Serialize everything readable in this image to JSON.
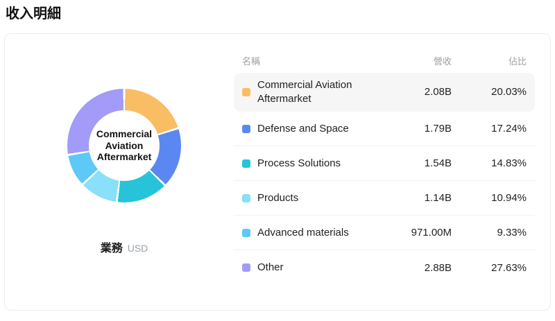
{
  "page_title": "收入明細",
  "card": {
    "center_label": "Commercial Aviation Aftermarket",
    "footer": {
      "label": "業務",
      "unit": "USD"
    },
    "table_headers": {
      "name": "名稱",
      "revenue": "營收",
      "ratio": "佔比"
    }
  },
  "chart_data": {
    "type": "pie",
    "title": "業務",
    "unit": "USD",
    "donut": true,
    "start_angle_deg": 0,
    "direction": "clockwise",
    "legend_position": "table-right",
    "segments": [
      {
        "label": "Commercial Aviation Aftermarket",
        "revenue": "2.08B",
        "percent": 20.03,
        "percent_label": "20.03%",
        "color": "#F9BE63",
        "highlighted": true
      },
      {
        "label": "Defense and Space",
        "revenue": "1.79B",
        "percent": 17.24,
        "percent_label": "17.24%",
        "color": "#5A87F2",
        "highlighted": false
      },
      {
        "label": "Process Solutions",
        "revenue": "1.54B",
        "percent": 14.83,
        "percent_label": "14.83%",
        "color": "#27C4D9",
        "highlighted": false
      },
      {
        "label": "Products",
        "revenue": "1.14B",
        "percent": 10.94,
        "percent_label": "10.94%",
        "color": "#8ADFF9",
        "highlighted": false
      },
      {
        "label": "Advanced materials",
        "revenue": "971.00M",
        "percent": 9.33,
        "percent_label": "9.33%",
        "color": "#5EC8F6",
        "highlighted": false
      },
      {
        "label": "Other",
        "revenue": "2.88B",
        "percent": 27.63,
        "percent_label": "27.63%",
        "color": "#A29BF7",
        "highlighted": false
      }
    ]
  }
}
